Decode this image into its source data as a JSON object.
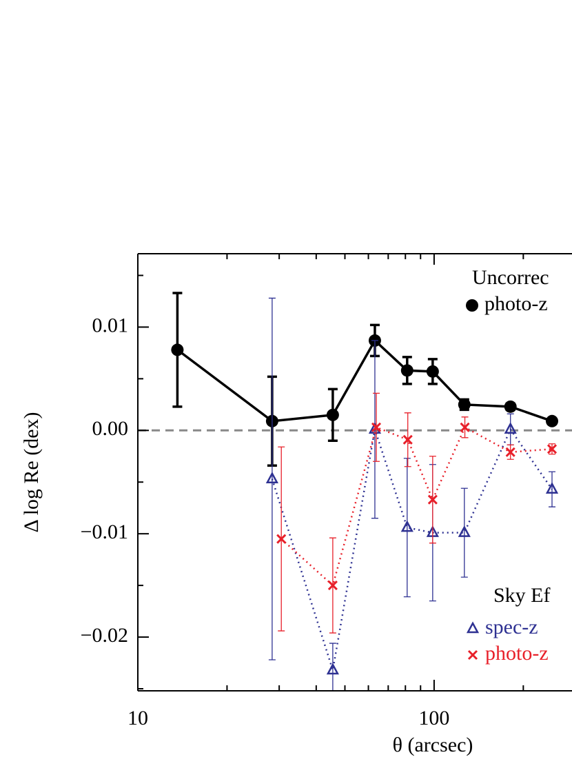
{
  "chart_data": {
    "type": "scatter",
    "xlabel": "θ (arcsec)",
    "ylabel": "Δ log Re (dex)",
    "xlog": true,
    "xlim": [
      10,
      292
    ],
    "ylim": [
      -0.0252,
      0.0171
    ],
    "xticks": [
      10,
      100
    ],
    "xminorticks": [
      20,
      30,
      40,
      50,
      60,
      70,
      80,
      90,
      200
    ],
    "yticks": [
      {
        "value": -0.02,
        "label": "−0.02"
      },
      {
        "value": -0.01,
        "label": "−0.01"
      },
      {
        "value": 0,
        "label": "0.00"
      },
      0.01
    ],
    "yminorticks": [
      -0.025,
      -0.015,
      -0.005,
      0.005,
      0.015
    ],
    "reference_line": {
      "value": 0,
      "color": "#888888"
    },
    "legend_groups": [
      "Uncorrec",
      "Sky Ef"
    ],
    "series": [
      {
        "name": "photo-z",
        "group": 0,
        "color": "#000000",
        "marker": "circle",
        "line": "solid",
        "x": [
          13.6,
          28.4,
          45.5,
          63.1,
          81.1,
          98.9,
          126.5,
          181,
          250
        ],
        "values": [
          0.0078,
          0.0009,
          0.0015,
          0.0087,
          0.0058,
          0.0057,
          0.0025,
          0.0023,
          0.0009
        ],
        "errors": [
          0.0055,
          0.0043,
          0.0025,
          0.0015,
          0.0013,
          0.0012,
          0.0005,
          0.0003,
          0.0002
        ]
      },
      {
        "name": "spec-z",
        "group": 1,
        "color": "#2e3192",
        "marker": "triangle",
        "line": "dotted",
        "x": [
          28.4,
          45.5,
          63.1,
          81.1,
          98.9,
          126.5,
          181,
          250
        ],
        "values": [
          -0.0047,
          -0.0232,
          0.0001,
          -0.0094,
          -0.0099,
          -0.0099,
          0.0001,
          -0.0057
        ],
        "errors": [
          0.0175,
          0.0026,
          0.0086,
          0.0067,
          0.0066,
          0.0043,
          0.0015,
          0.0017
        ]
      },
      {
        "name": "photo-z",
        "group": 1,
        "color": "#e8202a",
        "marker": "x",
        "line": "dotted",
        "x": [
          30.5,
          45.5,
          63.8,
          81.5,
          98.9,
          127,
          181,
          250
        ],
        "values": [
          -0.0105,
          -0.015,
          0.0003,
          -0.0009,
          -0.0067,
          0.0003,
          -0.0021,
          -0.0018
        ],
        "errors": [
          0.0089,
          0.0046,
          0.0033,
          0.0026,
          0.0042,
          0.001,
          0.0007,
          0.0005
        ]
      }
    ]
  }
}
